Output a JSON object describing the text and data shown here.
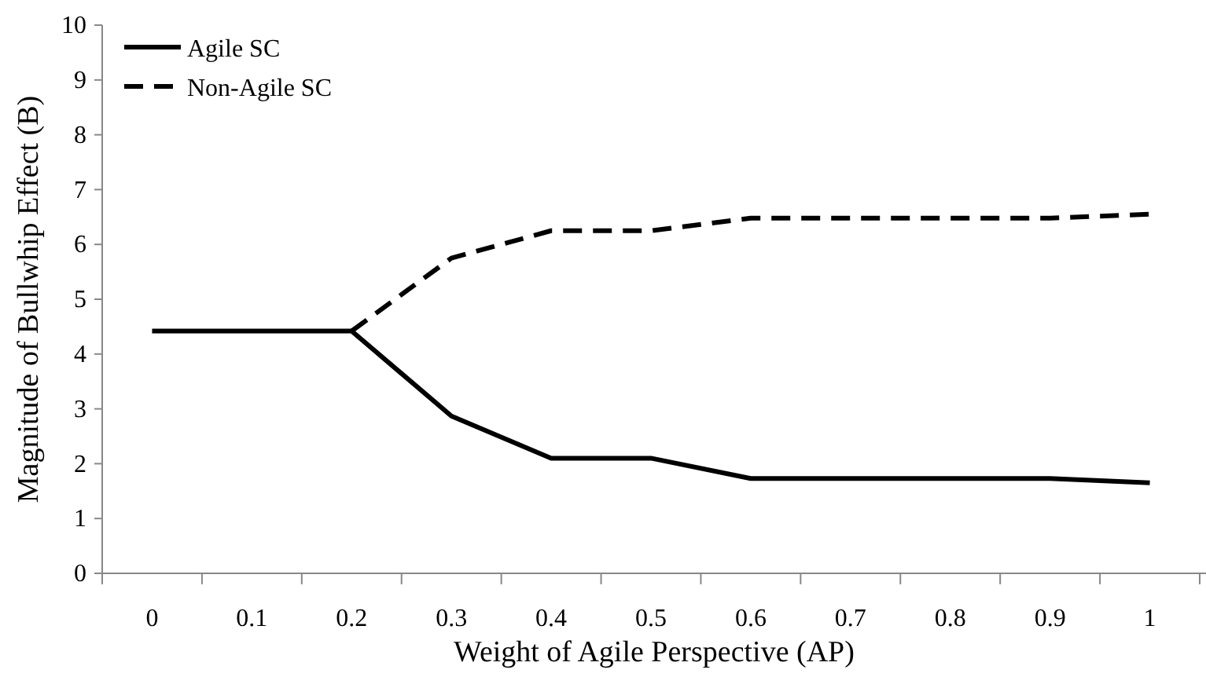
{
  "chart_data": {
    "type": "line",
    "xlabel": "Weight of Agile Perspective (AP)",
    "ylabel": "Magnitude of Bullwhip Effect (B)",
    "categories": [
      "0",
      "0.1",
      "0.2",
      "0.3",
      "0.4",
      "0.5",
      "0.6",
      "0.7",
      "0.8",
      "0.9",
      "1"
    ],
    "series": [
      {
        "name": "Agile SC",
        "color": "#000000",
        "line_style": "solid",
        "values": [
          4.42,
          4.42,
          4.42,
          2.87,
          2.1,
          2.1,
          1.73,
          1.73,
          1.73,
          1.73,
          1.65
        ]
      },
      {
        "name": "Non-Agile SC",
        "color": "#000000",
        "line_style": "dashed",
        "values": [
          null,
          null,
          4.42,
          5.75,
          6.25,
          6.25,
          6.48,
          6.48,
          6.48,
          6.48,
          6.55
        ]
      }
    ],
    "ylim": [
      0,
      10
    ],
    "yticks": [
      0,
      1,
      2,
      3,
      4,
      5,
      6,
      7,
      8,
      9,
      10
    ],
    "grid": false,
    "legend": "top left",
    "marker": "none"
  }
}
